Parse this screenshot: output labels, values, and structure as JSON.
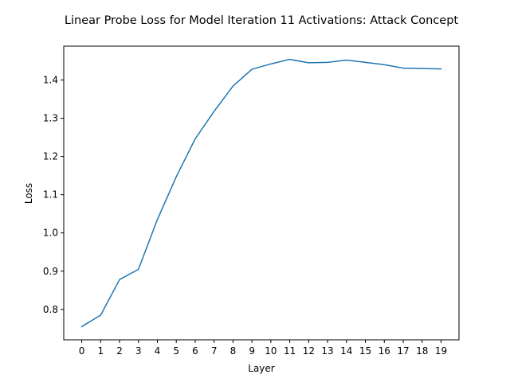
{
  "chart_data": {
    "type": "line",
    "title": "Linear Probe Loss for Model Iteration 11 Activations: Attack Concept",
    "xlabel": "Layer",
    "ylabel": "Loss",
    "x": [
      0,
      1,
      2,
      3,
      4,
      5,
      6,
      7,
      8,
      9,
      10,
      11,
      12,
      13,
      14,
      15,
      16,
      17,
      18,
      19
    ],
    "x_tick_labels": [
      "0",
      "1",
      "2",
      "3",
      "4",
      "5",
      "6",
      "7",
      "8",
      "9",
      "10",
      "11",
      "12",
      "13",
      "14",
      "15",
      "16",
      "17",
      "18",
      "19"
    ],
    "series": [
      {
        "values": [
          0.755,
          0.785,
          0.878,
          0.905,
          1.035,
          1.147,
          1.246,
          1.318,
          1.384,
          1.428,
          1.442,
          1.454,
          1.445,
          1.446,
          1.452,
          1.446,
          1.44,
          1.431,
          1.43,
          1.429
        ],
        "color": "#1f77b4"
      }
    ],
    "y_ticks": [
      0.8,
      0.9,
      1.0,
      1.1,
      1.2,
      1.3,
      1.4
    ],
    "y_tick_labels": [
      "0.8",
      "0.9",
      "1.0",
      "1.1",
      "1.2",
      "1.3",
      "1.4"
    ],
    "xlim": [
      -0.95,
      19.95
    ],
    "ylim": [
      0.7205,
      1.4885
    ],
    "grid": false,
    "legend": false
  }
}
